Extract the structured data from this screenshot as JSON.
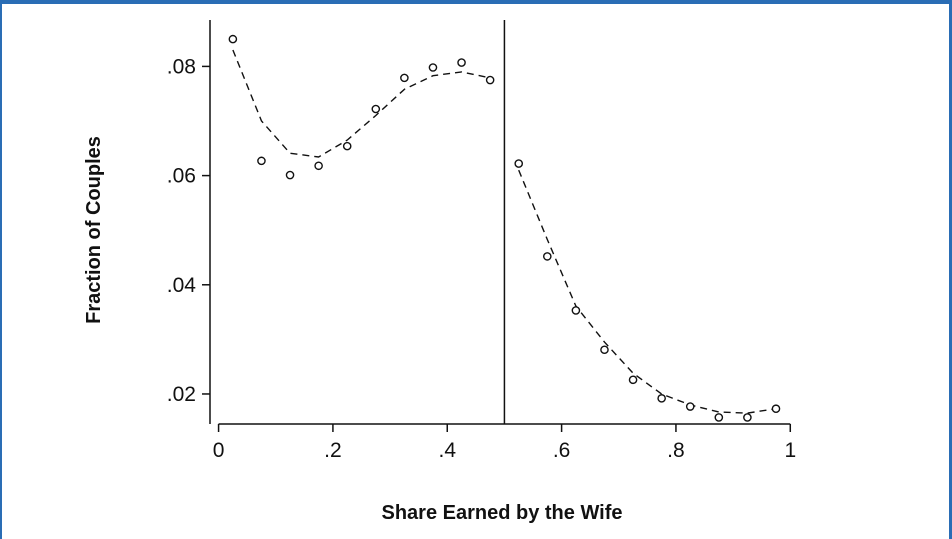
{
  "colors": {
    "frame": "#2a6db5",
    "ink": "#111111"
  },
  "chart_data": {
    "type": "scatter",
    "xlabel": "Share Earned by the Wife",
    "ylabel": "Fraction of Couples",
    "xlim": [
      -0.015,
      1.01
    ],
    "ylim": [
      0.0145,
      0.0885
    ],
    "xticks": [
      {
        "value": 0,
        "label": "0"
      },
      {
        "value": 0.2,
        "label": ".2"
      },
      {
        "value": 0.4,
        "label": ".4"
      },
      {
        "value": 0.6,
        "label": ".6"
      },
      {
        "value": 0.8,
        "label": ".8"
      },
      {
        "value": 1,
        "label": "1"
      }
    ],
    "yticks": [
      {
        "value": 0.02,
        "label": ".02"
      },
      {
        "value": 0.04,
        "label": ".04"
      },
      {
        "value": 0.06,
        "label": ".06"
      },
      {
        "value": 0.08,
        "label": ".08"
      }
    ],
    "vline": 0.5,
    "grid": false,
    "series": [
      {
        "style": "hollow-circles",
        "x": [
          0.025,
          0.075,
          0.125,
          0.175,
          0.225,
          0.275,
          0.325,
          0.375,
          0.425,
          0.475,
          0.525,
          0.575,
          0.625,
          0.675,
          0.725,
          0.775,
          0.825,
          0.875,
          0.925,
          0.975
        ],
        "y": [
          0.085,
          0.0627,
          0.0601,
          0.0618,
          0.0654,
          0.0722,
          0.0779,
          0.0798,
          0.0807,
          0.0775,
          0.0622,
          0.0452,
          0.0353,
          0.0281,
          0.0226,
          0.0192,
          0.0177,
          0.0157,
          0.0157,
          0.0173
        ]
      },
      {
        "style": "dashed-fit-left",
        "x": [
          0.025,
          0.075,
          0.125,
          0.175,
          0.225,
          0.275,
          0.325,
          0.375,
          0.425,
          0.475
        ],
        "y": [
          0.083,
          0.07,
          0.0641,
          0.0634,
          0.0665,
          0.071,
          0.0758,
          0.0783,
          0.079,
          0.0779
        ]
      },
      {
        "style": "dashed-fit-right",
        "x": [
          0.525,
          0.575,
          0.625,
          0.675,
          0.725,
          0.775,
          0.825,
          0.875,
          0.925,
          0.975
        ],
        "y": [
          0.061,
          0.0483,
          0.0361,
          0.0295,
          0.0238,
          0.02,
          0.018,
          0.0167,
          0.0165,
          0.0173
        ]
      }
    ]
  }
}
